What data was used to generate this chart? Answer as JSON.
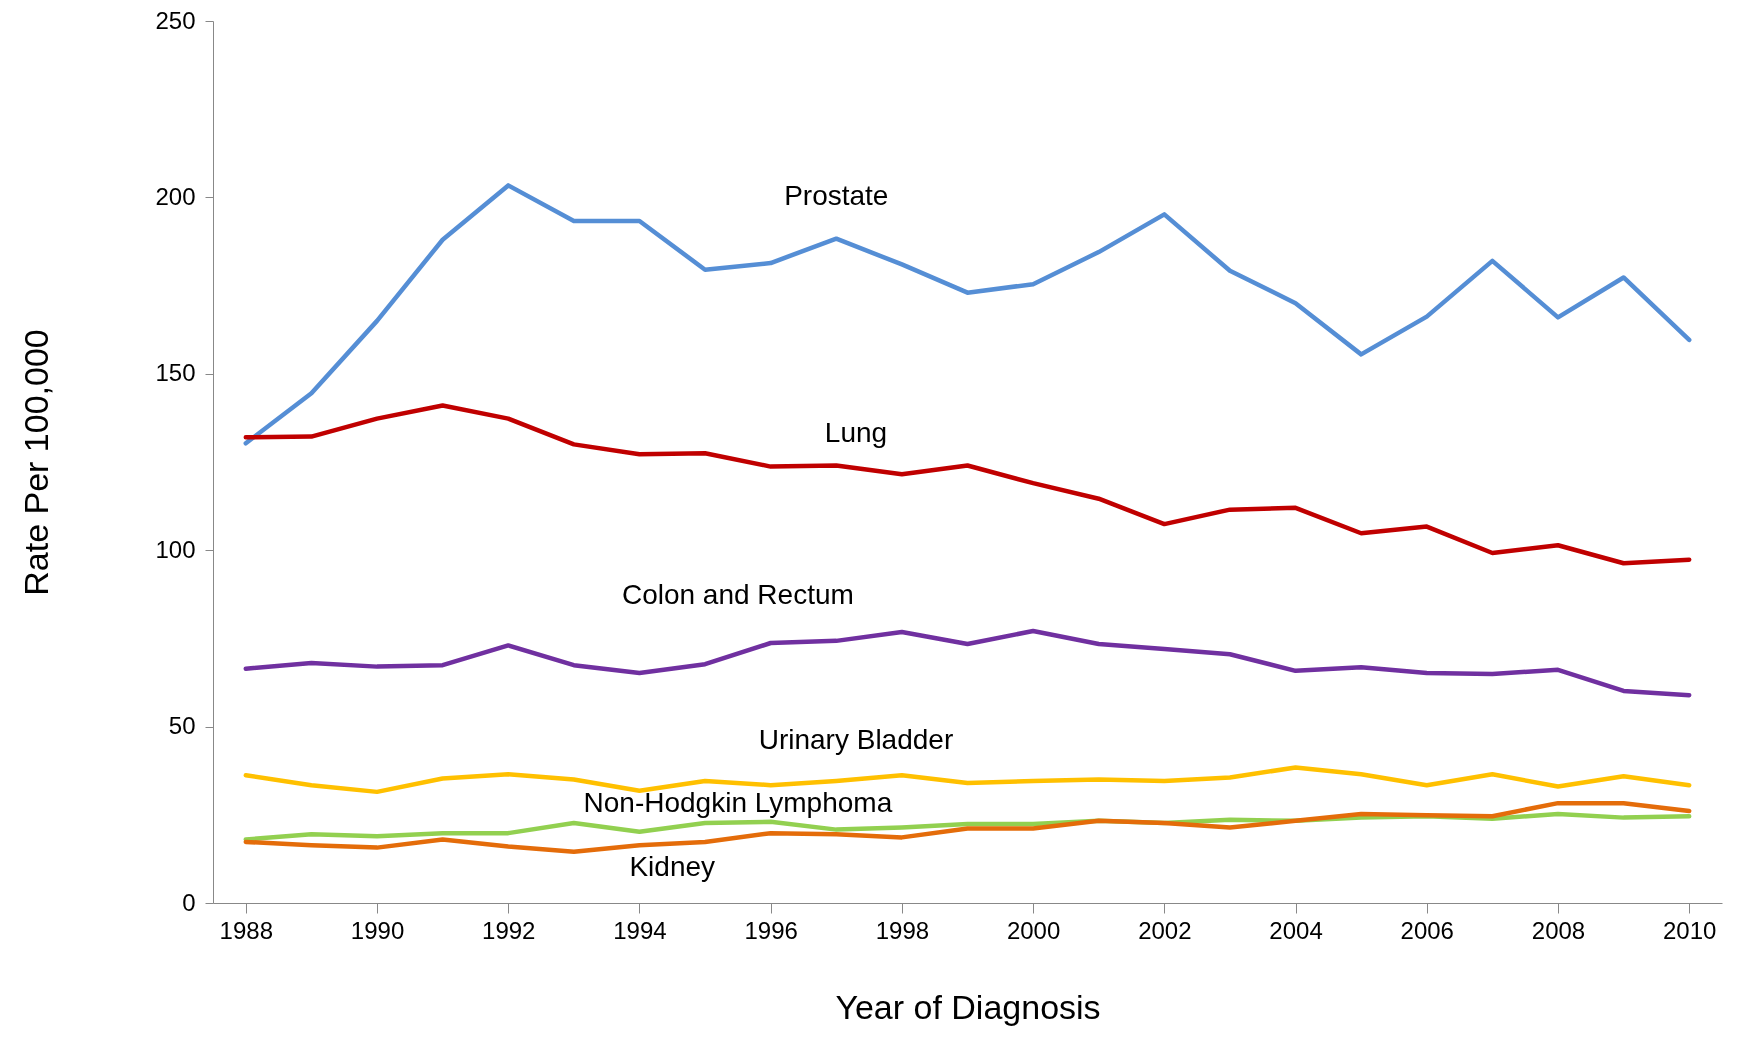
{
  "chart_data": {
    "type": "line",
    "xlabel": "Year of Diagnosis",
    "ylabel": "Rate Per 100,000",
    "x": [
      1988,
      1989,
      1990,
      1991,
      1992,
      1993,
      1994,
      1995,
      1996,
      1997,
      1998,
      1999,
      2000,
      2001,
      2002,
      2003,
      2004,
      2005,
      2006,
      2007,
      2008,
      2009,
      2010
    ],
    "xlim": [
      1987.5,
      2010.5
    ],
    "xticks": [
      1988,
      1990,
      1992,
      1994,
      1996,
      1998,
      2000,
      2002,
      2004,
      2006,
      2008,
      2010
    ],
    "ylim": [
      0,
      250
    ],
    "yticks": [
      0,
      50,
      100,
      150,
      200,
      250
    ],
    "series": [
      {
        "name": "Prostate",
        "color": "#558ed5",
        "values": [
          130.3,
          144.5,
          165,
          188,
          203.4,
          193.3,
          193.3,
          179.5,
          181.4,
          188.3,
          181,
          173,
          175.4,
          184.5,
          195.2,
          179.2,
          170,
          155.5,
          166.2,
          182,
          166,
          177.3,
          159.6
        ]
      },
      {
        "name": "Lung",
        "color": "#c00000",
        "values": [
          132,
          132.2,
          137.3,
          141,
          137.3,
          130,
          127.2,
          127.5,
          123.7,
          124,
          121.5,
          124,
          119,
          114.6,
          107.4,
          111.5,
          112,
          104.8,
          106.7,
          99.2,
          101.4,
          96.3,
          97.3
        ]
      },
      {
        "name": "Colon and Rectum",
        "color": "#7030a0",
        "values": [
          66.4,
          68,
          67,
          67.4,
          73,
          67.4,
          65.2,
          67.7,
          73.7,
          74.3,
          76.8,
          73.4,
          77.1,
          73.4,
          72,
          70.5,
          65.8,
          66.8,
          65.2,
          64.9,
          66.1,
          60.1,
          58.9
        ]
      },
      {
        "name": "Urinary Bladder",
        "color": "#ffc000",
        "values": [
          36.2,
          33.4,
          31.5,
          35.3,
          36.5,
          35,
          31.8,
          34.6,
          33.4,
          34.6,
          36.2,
          34,
          34.6,
          35,
          34.6,
          35.6,
          38.4,
          36.5,
          33.4,
          36.5,
          33,
          35.9,
          33.4
        ]
      },
      {
        "name": "Non-Hodgkin Lymphoma",
        "color": "#92d050",
        "values": [
          18,
          19.5,
          18.9,
          19.8,
          19.8,
          22.7,
          20.2,
          22.7,
          23,
          20.8,
          21.4,
          22.4,
          22.4,
          23.3,
          22.7,
          23.6,
          23.3,
          24.2,
          24.6,
          23.9,
          25.2,
          24.2,
          24.6
        ]
      },
      {
        "name": "Kidney",
        "color": "#e46c0a",
        "values": [
          17.3,
          16.4,
          15.7,
          18,
          16,
          14.5,
          16.4,
          17.3,
          19.8,
          19.5,
          18.6,
          21.1,
          21.1,
          23.3,
          22.7,
          21.4,
          23.3,
          25.2,
          24.9,
          24.6,
          28.3,
          28.3,
          26.1
        ]
      }
    ]
  }
}
